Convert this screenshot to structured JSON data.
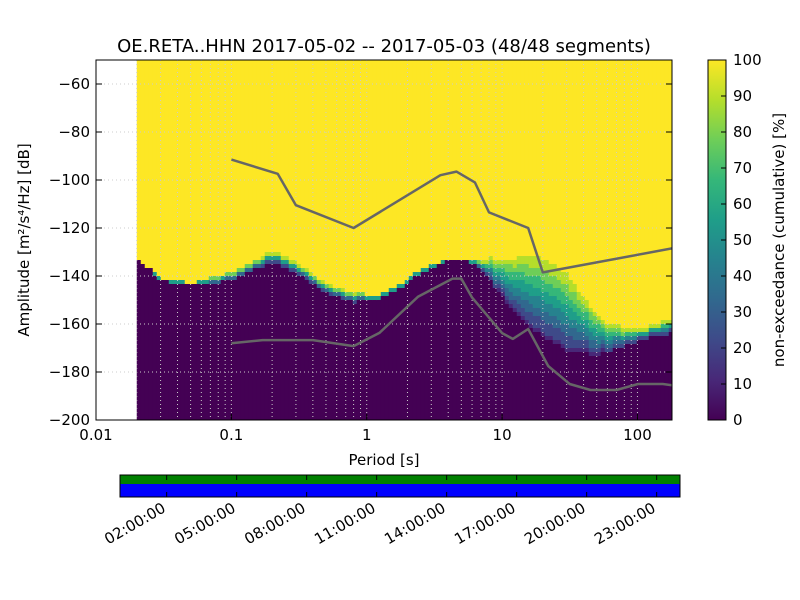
{
  "chart_data": {
    "type": "heatmap",
    "title": "OE.RETA..HHN   2017-05-02 -- 2017-05-03  (48/48 segments)",
    "xlabel": "Period [s]",
    "ylabel": "Amplitude [m²/s⁴/Hz] [dB]",
    "x_scale": "log",
    "xlim": [
      0.01,
      180
    ],
    "ylim": [
      -200,
      -50
    ],
    "xticks": [
      0.01,
      0.1,
      1,
      10,
      100
    ],
    "xtick_labels": [
      "0.01",
      "0.1",
      "1",
      "10",
      "100"
    ],
    "yticks": [
      -60,
      -80,
      -100,
      -120,
      -140,
      -160,
      -180,
      -200
    ],
    "ytick_labels": [
      "−60",
      "−80",
      "−100",
      "−120",
      "−140",
      "−160",
      "−180",
      "−200"
    ],
    "grid": true,
    "colorbar": {
      "label": "non-exceedance (cumulative) [%]",
      "range": [
        0,
        100
      ],
      "ticks": [
        0,
        10,
        20,
        30,
        40,
        50,
        60,
        70,
        80,
        90,
        100
      ],
      "tick_labels": [
        "0",
        "10",
        "20",
        "30",
        "40",
        "50",
        "60",
        "70",
        "80",
        "90",
        "100"
      ],
      "colors": [
        "#440154",
        "#482878",
        "#3e4a89",
        "#31688e",
        "#26828e",
        "#1f9e89",
        "#35b779",
        "#6ece58",
        "#b5de2b",
        "#fde725"
      ]
    },
    "data_start_period": 0.02,
    "psd_lower_edge": {
      "period": [
        0.02,
        0.025,
        0.03,
        0.05,
        0.08,
        0.12,
        0.2,
        0.3,
        0.5,
        0.8,
        1.2,
        1.8,
        2.5,
        3.5,
        4.5,
        5.5,
        7,
        9,
        12,
        16,
        20,
        30,
        50,
        80,
        120,
        180
      ],
      "db": [
        -133,
        -137,
        -142,
        -144,
        -143,
        -140,
        -134,
        -139,
        -147,
        -151,
        -150,
        -145,
        -139,
        -135,
        -133,
        -134,
        -137,
        -145,
        -155,
        -162,
        -165,
        -171,
        -173,
        -169,
        -166,
        -164
      ]
    },
    "psd_upper_edge": {
      "period": [
        0.02,
        0.025,
        0.03,
        0.05,
        0.08,
        0.12,
        0.2,
        0.3,
        0.5,
        0.8,
        1.2,
        1.8,
        2.5,
        3.5,
        4.5,
        5.5,
        7,
        9,
        12,
        16,
        20,
        30,
        50,
        80,
        120,
        180
      ],
      "db": [
        -133,
        -137,
        -141,
        -143,
        -140,
        -137,
        -129,
        -134,
        -143,
        -147,
        -148,
        -143,
        -137,
        -134,
        -133,
        -133,
        -133,
        -132,
        -131,
        -130,
        -131,
        -137,
        -155,
        -162,
        -161,
        -158
      ]
    },
    "noise_models": [
      {
        "name": "NHNM",
        "period": [
          0.1,
          0.22,
          0.3,
          0.8,
          3.5,
          4.6,
          6.3,
          8,
          15.6,
          20,
          180
        ],
        "db": [
          -91.5,
          -97.4,
          -110.5,
          -120,
          -98,
          -96.5,
          -101,
          -113.5,
          -120,
          -138.5,
          -128.5
        ]
      },
      {
        "name": "NLNM",
        "period": [
          0.1,
          0.17,
          0.4,
          0.8,
          1.24,
          2.4,
          4.3,
          5,
          6,
          10,
          12,
          15.6,
          21.9,
          31.6,
          45,
          70,
          101,
          154,
          180
        ],
        "db": [
          -168,
          -166.7,
          -166.7,
          -169.2,
          -163.7,
          -148.6,
          -141.1,
          -141.1,
          -149,
          -163.8,
          -166.2,
          -162.1,
          -177.5,
          -185,
          -187.5,
          -187.5,
          -185,
          -185,
          -185.5
        ]
      }
    ],
    "timeline": {
      "tick_labels": [
        "02:00:00",
        "05:00:00",
        "08:00:00",
        "11:00:00",
        "14:00:00",
        "17:00:00",
        "20:00:00",
        "23:00:00"
      ],
      "tick_hours": [
        2,
        5,
        8,
        11,
        14,
        17,
        20,
        23
      ],
      "start_hour": 0,
      "end_hour": 24,
      "segments": 48,
      "bar_colors": [
        "#008000",
        "#0000ff"
      ]
    }
  }
}
